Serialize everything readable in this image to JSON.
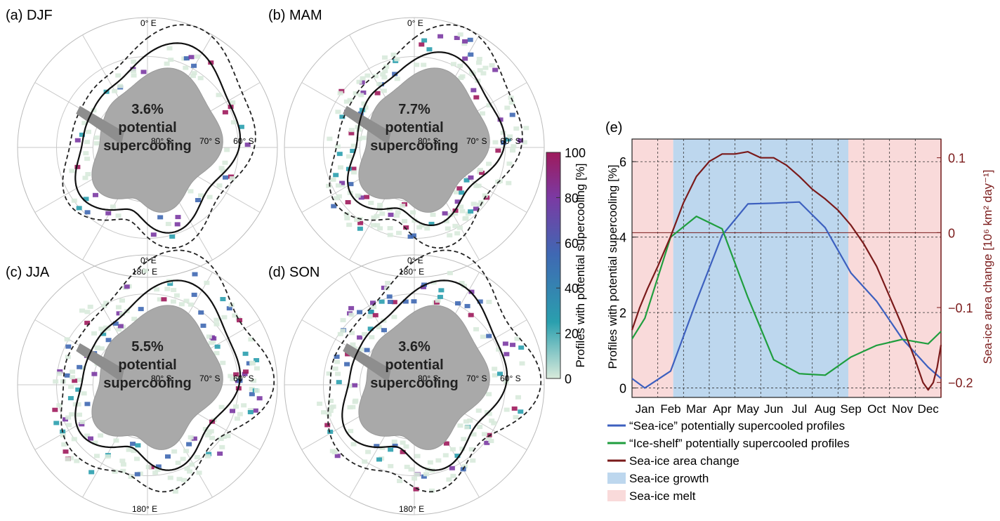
{
  "maps": [
    {
      "label": "(a) DJF",
      "pct": "3.6%",
      "line1": "potential",
      "line2": "supercooling",
      "seed": 11,
      "n": 70,
      "spread": 0.07
    },
    {
      "label": "(b) MAM",
      "pct": "7.7%",
      "line1": "potential",
      "line2": "supercooling",
      "seed": 23,
      "n": 190,
      "spread": 0.16
    },
    {
      "label": "(c) JJA",
      "pct": "5.5%",
      "line1": "potential",
      "line2": "supercooling",
      "seed": 37,
      "n": 200,
      "spread": 0.2
    },
    {
      "label": "(d) SON",
      "pct": "3.6%",
      "line1": "potential",
      "line2": "supercooling",
      "seed": 51,
      "n": 160,
      "spread": 0.2
    }
  ],
  "map_labels": {
    "top": "0° E",
    "bottom": "180° E",
    "lat80": "80° S",
    "lat70": "70° S",
    "lat60": "60° S"
  },
  "colorbar": {
    "label": "Profiles with potential supercooling [%]",
    "ticks": [
      "0",
      "20",
      "40",
      "60",
      "80",
      "100"
    ],
    "colors": [
      "#d8eadb",
      "#2a9fae",
      "#3f68b3",
      "#7b3aa3",
      "#9e1a5c"
    ]
  },
  "chart_data": {
    "type": "line",
    "panel_label": "(e)",
    "categories": [
      "Jan",
      "Feb",
      "Mar",
      "Apr",
      "May",
      "Jun",
      "Jul",
      "Aug",
      "Sep",
      "Oct",
      "Nov",
      "Dec"
    ],
    "ylabel_left": "Profiles with potential supercooling [%]",
    "ylabel_right": "Sea-ice area change [10⁶ km² day⁻¹]",
    "ylim_left": [
      -0.25,
      6.6
    ],
    "yticks_left": [
      "0",
      "2",
      "4",
      "6"
    ],
    "ylim_right": [
      -0.22,
      0.125
    ],
    "yticks_right": [
      "−0.2",
      "−0.1",
      "0",
      "0.1"
    ],
    "grid": true,
    "sea_ice_growth_range": [
      1.6,
      8.4
    ],
    "sea_ice_melt_ranges": [
      [
        0,
        1.6
      ],
      [
        8.4,
        12
      ]
    ],
    "series": [
      {
        "name": "“Sea-ice” potentially supercooled profiles",
        "color": "#3d60bf",
        "x": [
          0,
          0.5,
          1.5,
          2.5,
          3.5,
          4.5,
          5.5,
          6.5,
          7.5,
          8.5,
          9.5,
          10.5,
          11.5,
          12
        ],
        "y": [
          0.25,
          0.0,
          0.45,
          2.3,
          4.05,
          4.88,
          4.9,
          4.93,
          4.25,
          3.05,
          2.3,
          1.3,
          0.55,
          0.25
        ]
      },
      {
        "name": "“Ice-shelf” potentially supercooled profiles",
        "color": "#1f9e3e",
        "x": [
          0,
          0.5,
          1.5,
          2.5,
          3.5,
          4.5,
          5.5,
          6.5,
          7.5,
          8.5,
          9.5,
          10.5,
          11.5,
          12
        ],
        "y": [
          1.3,
          1.85,
          4.0,
          4.55,
          4.22,
          2.4,
          0.75,
          0.38,
          0.34,
          0.82,
          1.13,
          1.29,
          1.17,
          1.5
        ]
      },
      {
        "name": "Sea-ice area change",
        "color": "#7a1a1a",
        "axis": "right",
        "x": [
          0,
          0.3,
          0.6,
          1.0,
          1.5,
          2.0,
          2.5,
          3.0,
          3.5,
          4.0,
          4.5,
          5.0,
          5.5,
          6.0,
          6.5,
          7.0,
          7.5,
          8.0,
          8.5,
          9.0,
          9.5,
          10.0,
          10.5,
          11.0,
          11.3,
          11.5,
          11.7,
          11.85,
          12.0
        ],
        "y": [
          -0.13,
          -0.1,
          -0.075,
          -0.045,
          -0.005,
          0.04,
          0.075,
          0.095,
          0.105,
          0.105,
          0.108,
          0.1,
          0.1,
          0.09,
          0.075,
          0.058,
          0.045,
          0.03,
          0.01,
          -0.015,
          -0.045,
          -0.085,
          -0.125,
          -0.17,
          -0.2,
          -0.21,
          -0.2,
          -0.18,
          -0.15
        ]
      }
    ],
    "legend": [
      {
        "label": "“Sea-ice” potentially supercooled profiles",
        "kind": "line",
        "color": "#3d60bf"
      },
      {
        "label": "“Ice-shelf” potentially supercooled profiles",
        "kind": "line",
        "color": "#1f9e3e"
      },
      {
        "label": "Sea-ice area change",
        "kind": "line",
        "color": "#7a1a1a"
      },
      {
        "label": "Sea-ice growth",
        "kind": "box",
        "color": "#bdd7ee"
      },
      {
        "label": "Sea-ice melt",
        "kind": "box",
        "color": "#f9dada"
      }
    ]
  }
}
